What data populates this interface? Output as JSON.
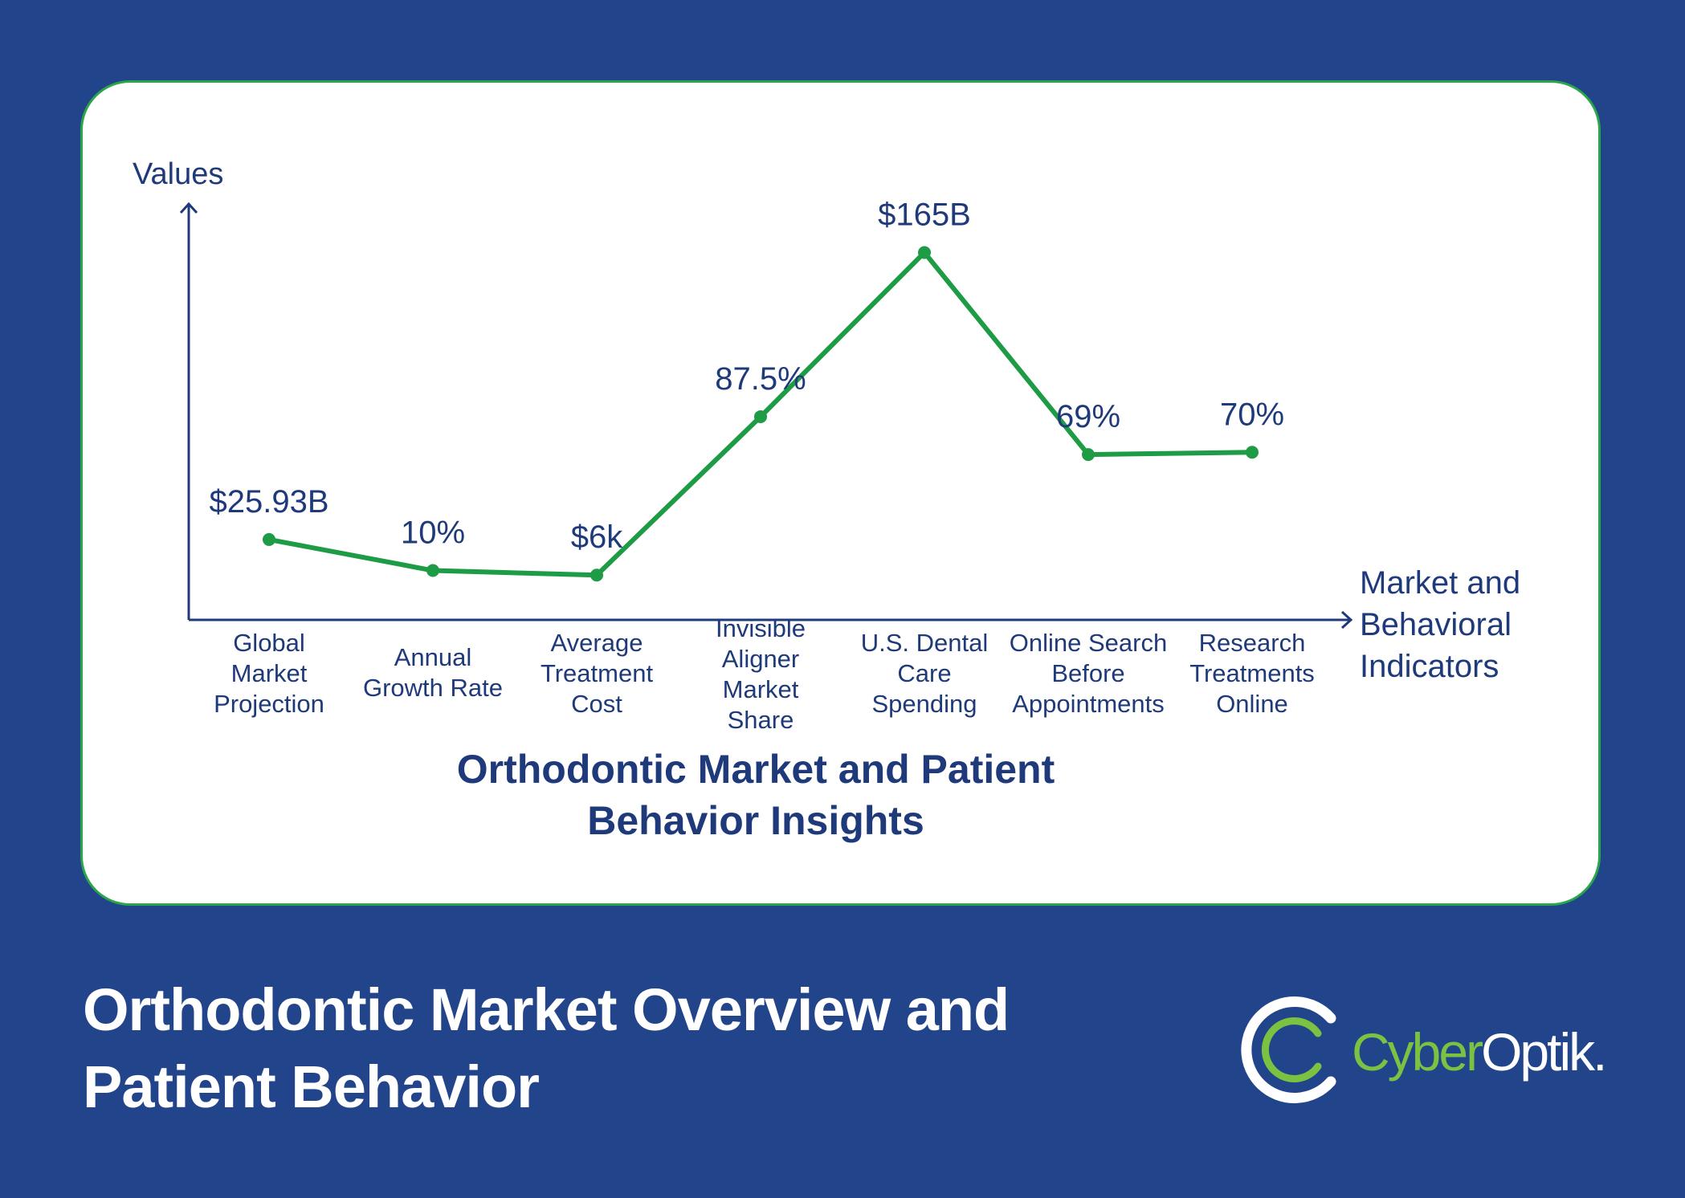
{
  "chart_data": {
    "type": "line",
    "title": "Orthodontic Market and Patient Behavior Insights",
    "title_lines": [
      "Orthodontic Market and Patient",
      "Behavior Insights"
    ],
    "xlabel": "Market and Behavioral Indicators",
    "xlabel_lines": [
      "Market and",
      "Behavioral",
      "Indicators"
    ],
    "ylabel": "Values",
    "categories": [
      "Global Market Projection",
      "Annual Growth Rate",
      "Average Treatment Cost",
      "Invisible Aligner Market Share",
      "U.S. Dental Care Spending",
      "Online Search Before Appointments",
      "Research Treatments Online"
    ],
    "category_lines": [
      [
        "Global",
        "Market",
        "Projection"
      ],
      [
        "Annual",
        "Growth Rate"
      ],
      [
        "Average",
        "Treatment",
        "Cost"
      ],
      [
        "Invisible",
        "Aligner",
        "Market",
        "Share"
      ],
      [
        "U.S. Dental",
        "Care",
        "Spending"
      ],
      [
        "Online Search",
        "Before",
        "Appointments"
      ],
      [
        "Research",
        "Treatments",
        "Online"
      ]
    ],
    "data_labels": [
      "$25.93B",
      "10%",
      "$6k",
      "87.5%",
      "$165B",
      "69%",
      "70%"
    ],
    "values": [
      0.35,
      0.215,
      0.195,
      0.885,
      1.6,
      0.72,
      0.73
    ],
    "ylim": [
      0,
      1.85
    ],
    "grid": false,
    "line_color": "#1e9b45",
    "axis_color": "#1f3a7a",
    "text_color": "#1f3a7a"
  },
  "footer": {
    "title": "Orthodontic Market Overview and Patient Behavior"
  },
  "logo": {
    "part1": "Cyber",
    "part2": "Optik."
  },
  "colors": {
    "background": "#21448b",
    "card": "#ffffff",
    "card_border": "#2aa54a",
    "logo_green": "#7bc242"
  }
}
